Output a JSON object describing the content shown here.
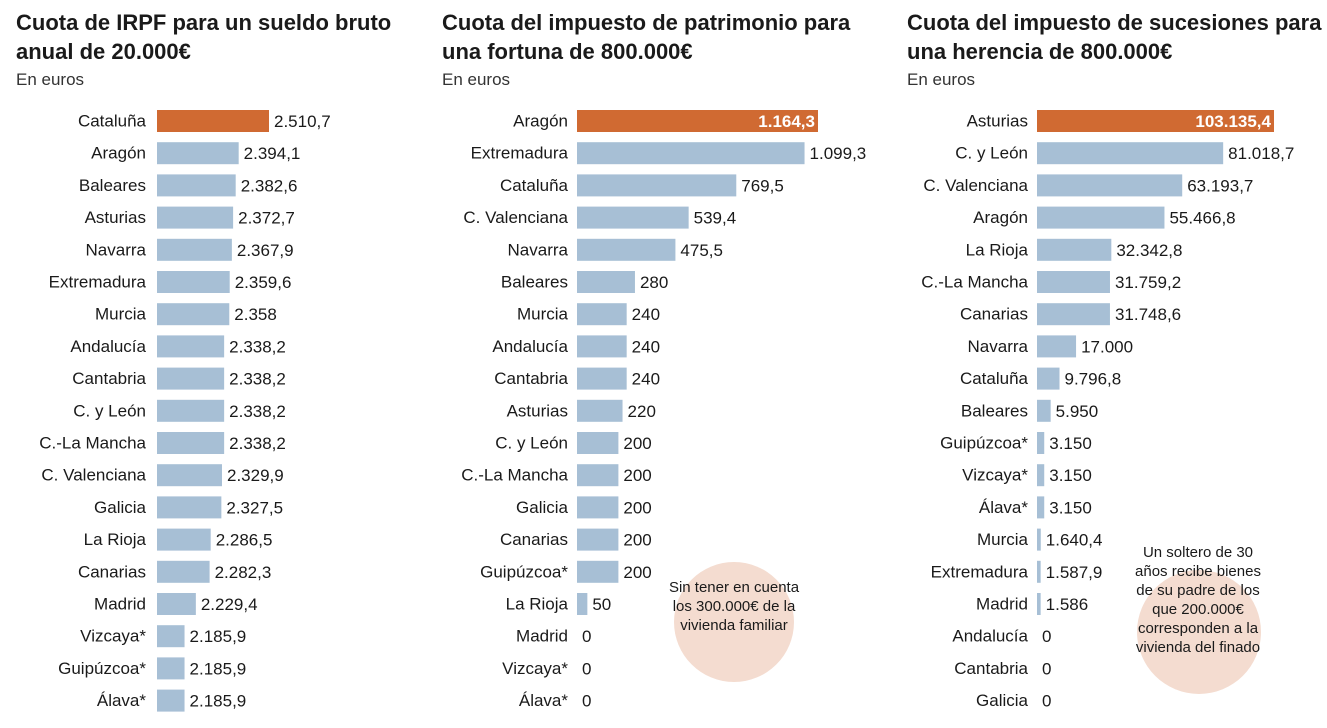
{
  "chart_data": [
    {
      "type": "bar",
      "title": "Cuota de IRPF para un sueldo bruto anual de 20.000€",
      "subtitle": "En euros",
      "categories": [
        "Cataluña",
        "Aragón",
        "Baleares",
        "Asturias",
        "Navarra",
        "Extremadura",
        "Murcia",
        "Andalucía",
        "Cantabria",
        "C. y León",
        "C.-La Mancha",
        "C. Valenciana",
        "Galicia",
        "La Rioja",
        "Canarias",
        "Madrid",
        "Vizcaya*",
        "Guipúzcoa*",
        "Álava*"
      ],
      "values": [
        2510.7,
        2394.1,
        2382.6,
        2372.7,
        2367.9,
        2359.6,
        2358,
        2338.2,
        2338.2,
        2338.2,
        2338.2,
        2329.9,
        2327.5,
        2286.5,
        2282.3,
        2229.4,
        2185.9,
        2185.9,
        2185.9
      ],
      "value_labels": [
        "2.510,7",
        "2.394,1",
        "2.382,6",
        "2.372,7",
        "2.367,9",
        "2.359,6",
        "2.358",
        "2.338,2",
        "2.338,2",
        "2.338,2",
        "2.338,2",
        "2.329,9",
        "2.327,5",
        "2.286,5",
        "2.282,3",
        "2.229,4",
        "2.185,9",
        "2.185,9",
        "2.185,9"
      ],
      "highlight_index": 0,
      "colors": {
        "highlight": "#d06a32",
        "bar": "#a7bfd5"
      }
    },
    {
      "type": "bar",
      "title": "Cuota del impuesto de patrimonio para una fortuna de 800.000€",
      "subtitle": "En euros",
      "categories": [
        "Aragón",
        "Extremadura",
        "Cataluña",
        "C. Valenciana",
        "Navarra",
        "Baleares",
        "Murcia",
        "Andalucía",
        "Cantabria",
        "Asturias",
        "C. y León",
        "C.-La Mancha",
        "Galicia",
        "Canarias",
        "Guipúzcoa*",
        "La Rioja",
        "Madrid",
        "Vizcaya*",
        "Álava*"
      ],
      "values": [
        1164.3,
        1099.3,
        769.5,
        539.4,
        475.5,
        280,
        240,
        240,
        240,
        220,
        200,
        200,
        200,
        200,
        200,
        50,
        0,
        0,
        0
      ],
      "value_labels": [
        "1.164,3",
        "1.099,3",
        "769,5",
        "539,4",
        "475,5",
        "280",
        "240",
        "240",
        "240",
        "220",
        "200",
        "200",
        "200",
        "200",
        "200",
        "50",
        "0",
        "0",
        "0"
      ],
      "highlight_index": 0,
      "colors": {
        "highlight": "#d06a32",
        "bar": "#a7bfd5"
      },
      "note": "Sin tener en cuenta los 300.000€ de la vivienda familiar"
    },
    {
      "type": "bar",
      "title": "Cuota del impuesto de sucesiones para una herencia de 800.000€",
      "subtitle": "En euros",
      "categories": [
        "Asturias",
        "C. y León",
        "C. Valenciana",
        "Aragón",
        "La Rioja",
        "C.-La Mancha",
        "Canarias",
        "Navarra",
        "Cataluña",
        "Baleares",
        "Guipúzcoa*",
        "Vizcaya*",
        "Álava*",
        "Murcia",
        "Extremadura",
        "Madrid",
        "Andalucía",
        "Cantabria",
        "Galicia"
      ],
      "values": [
        103135.4,
        81018.7,
        63193.7,
        55466.8,
        32342.8,
        31759.2,
        31748.6,
        17000,
        9796.8,
        5950,
        3150,
        3150,
        3150,
        1640.4,
        1587.9,
        1586,
        0,
        0,
        0
      ],
      "value_labels": [
        "103.135,4",
        "81.018,7",
        "63.193,7",
        "55.466,8",
        "32.342,8",
        "31.759,2",
        "31.748,6",
        "17.000",
        "9.796,8",
        "5.950",
        "3.150",
        "3.150",
        "3.150",
        "1.640,4",
        "1.587,9",
        "1.586",
        "0",
        "0",
        "0"
      ],
      "highlight_index": 0,
      "colors": {
        "highlight": "#d06a32",
        "bar": "#a7bfd5"
      },
      "note": "Un soltero de 30 años recibe bienes de su padre de los que 200.000€ corresponden a la vivienda del finado"
    }
  ]
}
